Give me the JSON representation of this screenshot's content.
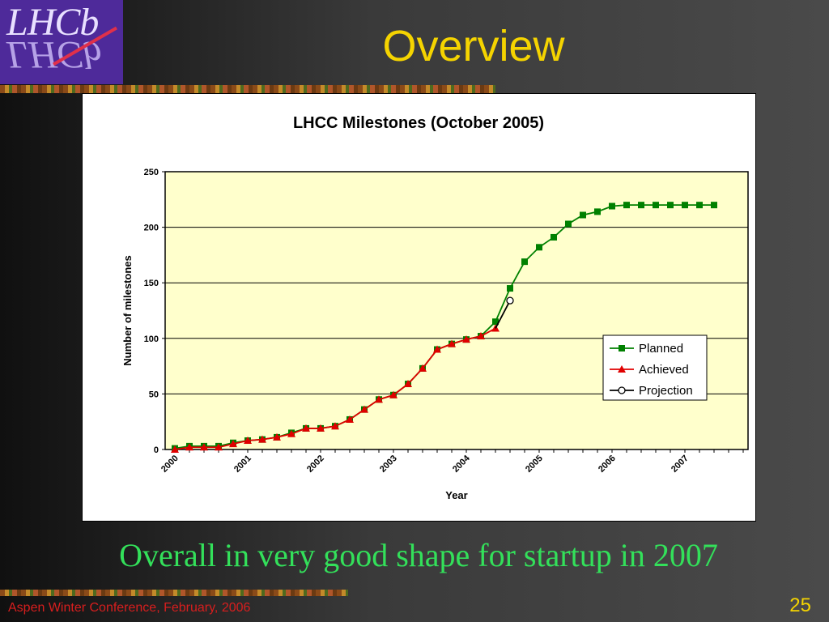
{
  "slide": {
    "title": "Overview",
    "caption": "Overall in very good shape for startup in 2007",
    "footer": "Aspen Winter Conference, February, 2006",
    "page_number": "25",
    "logo_text": "LHCb"
  },
  "colors": {
    "title": "#f5d400",
    "caption": "#33e05a",
    "footer": "#d81e1e",
    "plot_bg": "#ffffcc",
    "planned": "#008000",
    "achieved": "#e00000",
    "projection": "#000000"
  },
  "chart_data": {
    "type": "line",
    "title": "LHCC Milestones (October 2005)",
    "xlabel": "Year",
    "ylabel": "Number of milestones",
    "xlim": [
      2000,
      2008
    ],
    "ylim": [
      0,
      250
    ],
    "yticks": [
      0,
      50,
      100,
      150,
      200,
      250
    ],
    "xtick_labels": [
      "2000",
      "2001",
      "2002",
      "2003",
      "2004",
      "2005",
      "2006",
      "2007"
    ],
    "grid": "horizontal",
    "legend_position": "right",
    "series": [
      {
        "name": "Planned",
        "marker": "square",
        "x": [
          2000.0,
          2000.2,
          2000.4,
          2000.6,
          2000.8,
          2001.0,
          2001.2,
          2001.4,
          2001.6,
          2001.8,
          2002.0,
          2002.2,
          2002.4,
          2002.6,
          2002.8,
          2003.0,
          2003.2,
          2003.4,
          2003.6,
          2003.8,
          2004.0,
          2004.2,
          2004.4,
          2004.6,
          2004.8,
          2005.0,
          2005.2,
          2005.4,
          2005.6,
          2005.8,
          2006.0,
          2006.2,
          2006.4,
          2006.6,
          2006.8,
          2007.0,
          2007.2,
          2007.4
        ],
        "values": [
          1,
          3,
          3,
          3,
          6,
          8,
          9,
          11,
          15,
          19,
          19,
          21,
          27,
          36,
          45,
          49,
          59,
          73,
          90,
          95,
          99,
          102,
          115,
          145,
          169,
          182,
          191,
          203,
          211,
          214,
          219,
          220,
          220,
          220,
          220,
          220,
          220,
          220
        ]
      },
      {
        "name": "Achieved",
        "marker": "triangle",
        "x": [
          2000.0,
          2000.2,
          2000.4,
          2000.6,
          2000.8,
          2001.0,
          2001.2,
          2001.4,
          2001.6,
          2001.8,
          2002.0,
          2002.2,
          2002.4,
          2002.6,
          2002.8,
          2003.0,
          2003.2,
          2003.4,
          2003.6,
          2003.8,
          2004.0,
          2004.2,
          2004.4
        ],
        "values": [
          0,
          2,
          2,
          2,
          5,
          8,
          9,
          11,
          14,
          19,
          19,
          21,
          27,
          36,
          45,
          49,
          59,
          73,
          90,
          95,
          99,
          102,
          109
        ]
      },
      {
        "name": "Projection",
        "marker": "circle",
        "x": [
          2004.4,
          2004.6
        ],
        "values": [
          109,
          134
        ]
      }
    ]
  }
}
